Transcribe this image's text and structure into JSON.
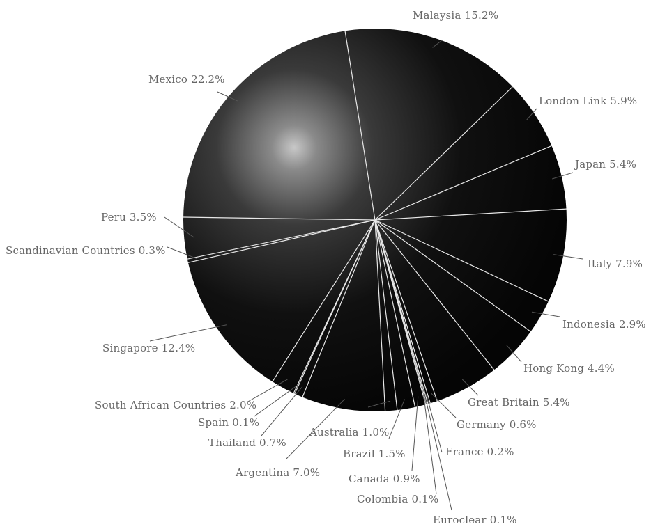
{
  "chart_data": {
    "type": "pie",
    "title": "",
    "colors": {
      "sphere_highlight": "#c8c8c8",
      "sphere_mid": "#3a3a3a",
      "sphere_dark": "#050505",
      "divider": "#e8e8e8",
      "label": "#666666"
    },
    "slices": [
      {
        "name": "Malaysia",
        "value": 15.2,
        "label": "Malaysia 15.2%"
      },
      {
        "name": "London Link",
        "value": 5.9,
        "label": "London Link 5.9%"
      },
      {
        "name": "Japan",
        "value": 5.4,
        "label": "Japan 5.4%"
      },
      {
        "name": "Italy",
        "value": 7.9,
        "label": "Italy 7.9%"
      },
      {
        "name": "Indonesia",
        "value": 2.9,
        "label": "Indonesia 2.9%"
      },
      {
        "name": "Hong Kong",
        "value": 4.4,
        "label": "Hong Kong 4.4%"
      },
      {
        "name": "Great Britain",
        "value": 5.4,
        "label": "Great Britain 5.4%"
      },
      {
        "name": "Germany",
        "value": 0.6,
        "label": "Germany 0.6%"
      },
      {
        "name": "France",
        "value": 0.2,
        "label": "France 0.2%"
      },
      {
        "name": "Euroclear",
        "value": 0.1,
        "label": "Euroclear 0.1%"
      },
      {
        "name": "Colombia",
        "value": 0.1,
        "label": "Colombia 0.1%"
      },
      {
        "name": "Canada",
        "value": 0.9,
        "label": "Canada 0.9%"
      },
      {
        "name": "Brazil",
        "value": 1.5,
        "label": "Brazil 1.5%"
      },
      {
        "name": "Australia",
        "value": 1.0,
        "label": "Australia 1.0%"
      },
      {
        "name": "Argentina",
        "value": 7.0,
        "label": "Argentina 7.0%"
      },
      {
        "name": "Thailand",
        "value": 0.7,
        "label": "Thailand 0.7%"
      },
      {
        "name": "Spain",
        "value": 0.1,
        "label": "Spain 0.1%"
      },
      {
        "name": "South African Countries",
        "value": 2.0,
        "label": "South African Countries 2.0%"
      },
      {
        "name": "Singapore",
        "value": 12.4,
        "label": "Singapore 12.4%"
      },
      {
        "name": "Scandinavian Countries",
        "value": 0.3,
        "label": "Scandinavian Countries 0.3%"
      },
      {
        "name": "Peru",
        "value": 3.5,
        "label": "Peru 3.5%"
      },
      {
        "name": "Mexico",
        "value": 22.2,
        "label": "Mexico 22.2%"
      }
    ]
  }
}
